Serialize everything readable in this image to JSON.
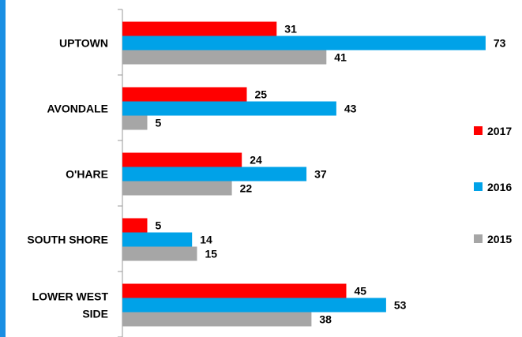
{
  "chart_data": {
    "type": "bar",
    "orientation": "horizontal",
    "categories": [
      "UPTOWN",
      "AVONDALE",
      "O'HARE",
      "SOUTH SHORE",
      "LOWER WEST SIDE"
    ],
    "category_lines": [
      [
        "UPTOWN"
      ],
      [
        "AVONDALE"
      ],
      [
        "O'HARE"
      ],
      [
        "SOUTH SHORE"
      ],
      [
        "LOWER WEST",
        "SIDE"
      ]
    ],
    "series": [
      {
        "name": "2017",
        "color": "#ff0000",
        "values": [
          31,
          25,
          24,
          5,
          45
        ]
      },
      {
        "name": "2016",
        "color": "#00a2e8",
        "values": [
          73,
          43,
          37,
          14,
          53
        ]
      },
      {
        "name": "2015",
        "color": "#a6a6a6",
        "values": [
          41,
          5,
          22,
          15,
          38
        ]
      }
    ],
    "title": "",
    "xlabel": "",
    "ylabel": "",
    "xlim": [
      0,
      80
    ],
    "grid": false,
    "legend_position": "right"
  },
  "colors": {
    "accent_stripe": "#1a8fe3",
    "axis": "#999999"
  }
}
